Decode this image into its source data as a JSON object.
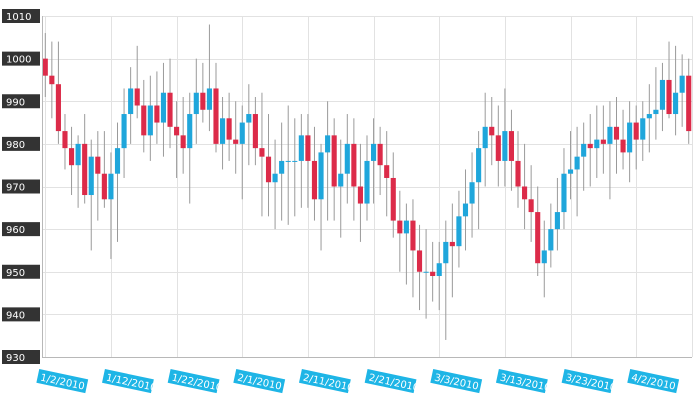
{
  "chart_data": {
    "type": "candlestick",
    "title": "",
    "xlabel": "",
    "ylabel": "",
    "ylim": [
      930,
      1010
    ],
    "y_ticks": [
      930,
      940,
      950,
      960,
      970,
      980,
      990,
      1000,
      1010
    ],
    "x_tick_labels": [
      "1/2/2010",
      "1/12/2010",
      "1/22/2010",
      "2/1/2010",
      "2/11/2010",
      "2/21/2010",
      "3/3/2010",
      "3/13/2010",
      "3/23/2010",
      "4/2/2010"
    ],
    "grid": true,
    "colors": {
      "up": "#1fa6db",
      "down": "#dc2b49",
      "wick": "#9a9a9a",
      "tick_bg": "#333333",
      "date_bg": "#1eb5e6"
    },
    "candles": [
      {
        "date": "1/2/2010",
        "open": 1000,
        "high": 1006,
        "low": 991,
        "close": 996
      },
      {
        "date": "1/3/2010",
        "open": 996,
        "high": 1004,
        "low": 986,
        "close": 994
      },
      {
        "date": "1/4/2010",
        "open": 994,
        "high": 1004,
        "low": 980,
        "close": 983
      },
      {
        "date": "1/5/2010",
        "open": 983,
        "high": 987,
        "low": 974,
        "close": 979
      },
      {
        "date": "1/6/2010",
        "open": 979,
        "high": 984,
        "low": 968,
        "close": 975
      },
      {
        "date": "1/7/2010",
        "open": 975,
        "high": 982,
        "low": 965,
        "close": 980
      },
      {
        "date": "1/8/2010",
        "open": 980,
        "high": 987,
        "low": 966,
        "close": 968
      },
      {
        "date": "1/9/2010",
        "open": 968,
        "high": 981,
        "low": 955,
        "close": 977
      },
      {
        "date": "1/10/2010",
        "open": 977,
        "high": 983,
        "low": 962,
        "close": 973
      },
      {
        "date": "1/11/2010",
        "open": 973,
        "high": 983,
        "low": 965,
        "close": 967
      },
      {
        "date": "1/12/2010",
        "open": 967,
        "high": 978,
        "low": 953,
        "close": 973
      },
      {
        "date": "1/13/2010",
        "open": 973,
        "high": 985,
        "low": 957,
        "close": 979
      },
      {
        "date": "1/14/2010",
        "open": 979,
        "high": 993,
        "low": 972,
        "close": 987
      },
      {
        "date": "1/15/2010",
        "open": 987,
        "high": 998,
        "low": 980,
        "close": 993
      },
      {
        "date": "1/16/2010",
        "open": 993,
        "high": 1003,
        "low": 986,
        "close": 989
      },
      {
        "date": "1/17/2010",
        "open": 989,
        "high": 995,
        "low": 978,
        "close": 982
      },
      {
        "date": "1/18/2010",
        "open": 982,
        "high": 996,
        "low": 976,
        "close": 989
      },
      {
        "date": "1/19/2010",
        "open": 989,
        "high": 997,
        "low": 980,
        "close": 985
      },
      {
        "date": "1/20/2010",
        "open": 985,
        "high": 999,
        "low": 977,
        "close": 992
      },
      {
        "date": "1/21/2010",
        "open": 992,
        "high": 1000,
        "low": 979,
        "close": 984
      },
      {
        "date": "1/22/2010",
        "open": 984,
        "high": 990,
        "low": 972,
        "close": 982
      },
      {
        "date": "1/23/2010",
        "open": 982,
        "high": 991,
        "low": 973,
        "close": 979
      },
      {
        "date": "1/24/2010",
        "open": 979,
        "high": 992,
        "low": 966,
        "close": 987
      },
      {
        "date": "1/25/2010",
        "open": 987,
        "high": 1000,
        "low": 980,
        "close": 992
      },
      {
        "date": "1/26/2010",
        "open": 992,
        "high": 999,
        "low": 985,
        "close": 988
      },
      {
        "date": "1/27/2010",
        "open": 988,
        "high": 1008,
        "low": 983,
        "close": 993
      },
      {
        "date": "1/28/2010",
        "open": 993,
        "high": 999,
        "low": 978,
        "close": 980
      },
      {
        "date": "1/29/2010",
        "open": 980,
        "high": 991,
        "low": 974,
        "close": 986
      },
      {
        "date": "1/30/2010",
        "open": 986,
        "high": 992,
        "low": 976,
        "close": 981
      },
      {
        "date": "1/31/2010",
        "open": 981,
        "high": 990,
        "low": 973,
        "close": 980
      },
      {
        "date": "2/1/2010",
        "open": 980,
        "high": 989,
        "low": 967,
        "close": 985
      },
      {
        "date": "2/2/2010",
        "open": 985,
        "high": 994,
        "low": 975,
        "close": 987
      },
      {
        "date": "2/3/2010",
        "open": 987,
        "high": 991,
        "low": 975,
        "close": 979
      },
      {
        "date": "2/4/2010",
        "open": 979,
        "high": 992,
        "low": 963,
        "close": 977
      },
      {
        "date": "2/5/2010",
        "open": 977,
        "high": 987,
        "low": 963,
        "close": 971
      },
      {
        "date": "2/6/2010",
        "open": 971,
        "high": 981,
        "low": 960,
        "close": 973
      },
      {
        "date": "2/7/2010",
        "open": 973,
        "high": 985,
        "low": 962,
        "close": 976
      },
      {
        "date": "2/8/2010",
        "open": 976,
        "high": 989,
        "low": 961,
        "close": 976
      },
      {
        "date": "2/9/2010",
        "open": 976,
        "high": 986,
        "low": 963,
        "close": 976
      },
      {
        "date": "2/10/2010",
        "open": 976,
        "high": 987,
        "low": 965,
        "close": 982
      },
      {
        "date": "2/11/2010",
        "open": 982,
        "high": 987,
        "low": 965,
        "close": 976
      },
      {
        "date": "2/12/2010",
        "open": 976,
        "high": 984,
        "low": 962,
        "close": 967
      },
      {
        "date": "2/13/2010",
        "open": 967,
        "high": 980,
        "low": 955,
        "close": 978
      },
      {
        "date": "2/14/2010",
        "open": 978,
        "high": 990,
        "low": 962,
        "close": 982
      },
      {
        "date": "2/15/2010",
        "open": 982,
        "high": 986,
        "low": 962,
        "close": 970
      },
      {
        "date": "2/16/2010",
        "open": 970,
        "high": 981,
        "low": 958,
        "close": 973
      },
      {
        "date": "2/17/2010",
        "open": 973,
        "high": 987,
        "low": 966,
        "close": 980
      },
      {
        "date": "2/18/2010",
        "open": 980,
        "high": 986,
        "low": 962,
        "close": 970
      },
      {
        "date": "2/19/2010",
        "open": 970,
        "high": 980,
        "low": 957,
        "close": 966
      },
      {
        "date": "2/20/2010",
        "open": 966,
        "high": 982,
        "low": 962,
        "close": 976
      },
      {
        "date": "2/21/2010",
        "open": 976,
        "high": 986,
        "low": 966,
        "close": 980
      },
      {
        "date": "2/22/2010",
        "open": 980,
        "high": 984,
        "low": 968,
        "close": 975
      },
      {
        "date": "2/23/2010",
        "open": 975,
        "high": 983,
        "low": 963,
        "close": 972
      },
      {
        "date": "2/24/2010",
        "open": 972,
        "high": 978,
        "low": 958,
        "close": 962
      },
      {
        "date": "2/25/2010",
        "open": 962,
        "high": 969,
        "low": 950,
        "close": 959
      },
      {
        "date": "2/26/2010",
        "open": 959,
        "high": 966,
        "low": 947,
        "close": 962
      },
      {
        "date": "2/27/2010",
        "open": 962,
        "high": 967,
        "low": 944,
        "close": 955
      },
      {
        "date": "2/28/2010",
        "open": 955,
        "high": 961,
        "low": 941,
        "close": 950
      },
      {
        "date": "3/1/2010",
        "open": 950,
        "high": 960,
        "low": 939,
        "close": 950
      },
      {
        "date": "3/2/2010",
        "open": 950,
        "high": 957,
        "low": 943,
        "close": 949
      },
      {
        "date": "3/3/2010",
        "open": 949,
        "high": 957,
        "low": 941,
        "close": 952
      },
      {
        "date": "3/4/2010",
        "open": 952,
        "high": 962,
        "low": 934,
        "close": 957
      },
      {
        "date": "3/5/2010",
        "open": 957,
        "high": 966,
        "low": 944,
        "close": 956
      },
      {
        "date": "3/6/2010",
        "open": 956,
        "high": 969,
        "low": 951,
        "close": 963
      },
      {
        "date": "3/7/2010",
        "open": 963,
        "high": 974,
        "low": 955,
        "close": 966
      },
      {
        "date": "3/8/2010",
        "open": 966,
        "high": 978,
        "low": 958,
        "close": 971
      },
      {
        "date": "3/9/2010",
        "open": 971,
        "high": 983,
        "low": 960,
        "close": 979
      },
      {
        "date": "3/10/2010",
        "open": 979,
        "high": 992,
        "low": 970,
        "close": 984
      },
      {
        "date": "3/11/2010",
        "open": 984,
        "high": 991,
        "low": 975,
        "close": 982
      },
      {
        "date": "3/12/2010",
        "open": 982,
        "high": 989,
        "low": 970,
        "close": 976
      },
      {
        "date": "3/13/2010",
        "open": 976,
        "high": 993,
        "low": 970,
        "close": 983
      },
      {
        "date": "3/14/2010",
        "open": 983,
        "high": 988,
        "low": 969,
        "close": 976
      },
      {
        "date": "3/15/2010",
        "open": 976,
        "high": 983,
        "low": 965,
        "close": 970
      },
      {
        "date": "3/16/2010",
        "open": 970,
        "high": 980,
        "low": 960,
        "close": 967
      },
      {
        "date": "3/17/2010",
        "open": 967,
        "high": 975,
        "low": 957,
        "close": 964
      },
      {
        "date": "3/18/2010",
        "open": 964,
        "high": 970,
        "low": 949,
        "close": 952
      },
      {
        "date": "3/19/2010",
        "open": 952,
        "high": 962,
        "low": 944,
        "close": 955
      },
      {
        "date": "3/20/2010",
        "open": 955,
        "high": 966,
        "low": 951,
        "close": 960
      },
      {
        "date": "3/21/2010",
        "open": 960,
        "high": 972,
        "low": 955,
        "close": 964
      },
      {
        "date": "3/22/2010",
        "open": 964,
        "high": 979,
        "low": 960,
        "close": 973
      },
      {
        "date": "3/23/2010",
        "open": 973,
        "high": 983,
        "low": 967,
        "close": 974
      },
      {
        "date": "3/24/2010",
        "open": 974,
        "high": 984,
        "low": 963,
        "close": 977
      },
      {
        "date": "3/25/2010",
        "open": 977,
        "high": 985,
        "low": 969,
        "close": 980
      },
      {
        "date": "3/26/2010",
        "open": 980,
        "high": 987,
        "low": 970,
        "close": 979
      },
      {
        "date": "3/27/2010",
        "open": 979,
        "high": 989,
        "low": 972,
        "close": 981
      },
      {
        "date": "3/28/2010",
        "open": 981,
        "high": 989,
        "low": 973,
        "close": 980
      },
      {
        "date": "3/29/2010",
        "open": 980,
        "high": 990,
        "low": 967,
        "close": 984
      },
      {
        "date": "3/30/2010",
        "open": 984,
        "high": 991,
        "low": 973,
        "close": 981
      },
      {
        "date": "3/31/2010",
        "open": 981,
        "high": 988,
        "low": 974,
        "close": 978
      },
      {
        "date": "4/1/2010",
        "open": 978,
        "high": 990,
        "low": 971,
        "close": 985
      },
      {
        "date": "4/2/2010",
        "open": 985,
        "high": 989,
        "low": 974,
        "close": 981
      },
      {
        "date": "4/3/2010",
        "open": 981,
        "high": 990,
        "low": 976,
        "close": 986
      },
      {
        "date": "4/4/2010",
        "open": 986,
        "high": 994,
        "low": 978,
        "close": 987
      },
      {
        "date": "4/5/2010",
        "open": 987,
        "high": 998,
        "low": 981,
        "close": 988
      },
      {
        "date": "4/6/2010",
        "open": 988,
        "high": 999,
        "low": 983,
        "close": 995
      },
      {
        "date": "4/7/2010",
        "open": 995,
        "high": 1004,
        "low": 986,
        "close": 987
      },
      {
        "date": "4/8/2010",
        "open": 987,
        "high": 1003,
        "low": 982,
        "close": 992
      },
      {
        "date": "4/9/2010",
        "open": 992,
        "high": 1001,
        "low": 984,
        "close": 996
      },
      {
        "date": "4/10/2010",
        "open": 996,
        "high": 1000,
        "low": 980,
        "close": 983
      }
    ]
  }
}
